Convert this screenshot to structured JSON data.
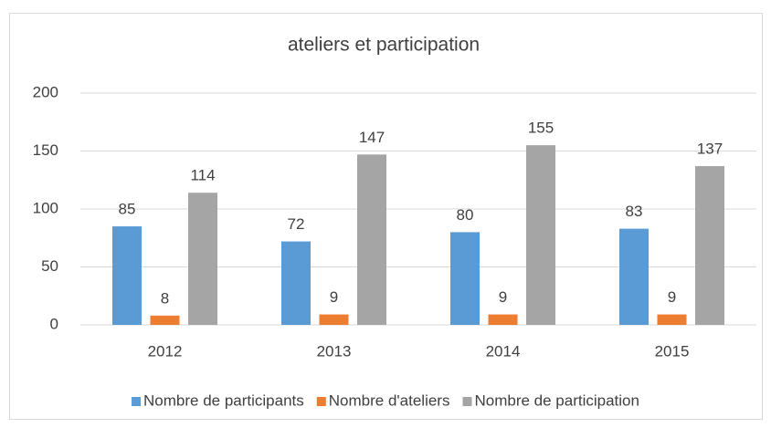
{
  "chart_data": {
    "type": "bar",
    "title": "ateliers et participation",
    "categories": [
      "2012",
      "2013",
      "2014",
      "2015"
    ],
    "series": [
      {
        "name": "Nombre de participants",
        "color": "#5b9bd5",
        "values": [
          85,
          72,
          80,
          83
        ]
      },
      {
        "name": "Nombre d'ateliers",
        "color": "#ed7d31",
        "values": [
          8,
          9,
          9,
          9
        ]
      },
      {
        "name": "Nombre de participation",
        "color": "#a5a5a5",
        "values": [
          114,
          147,
          155,
          137
        ]
      }
    ],
    "ylim": [
      0,
      200
    ],
    "yticks": [
      0,
      50,
      100,
      150,
      200
    ],
    "grid": true,
    "legend": "bottom"
  }
}
